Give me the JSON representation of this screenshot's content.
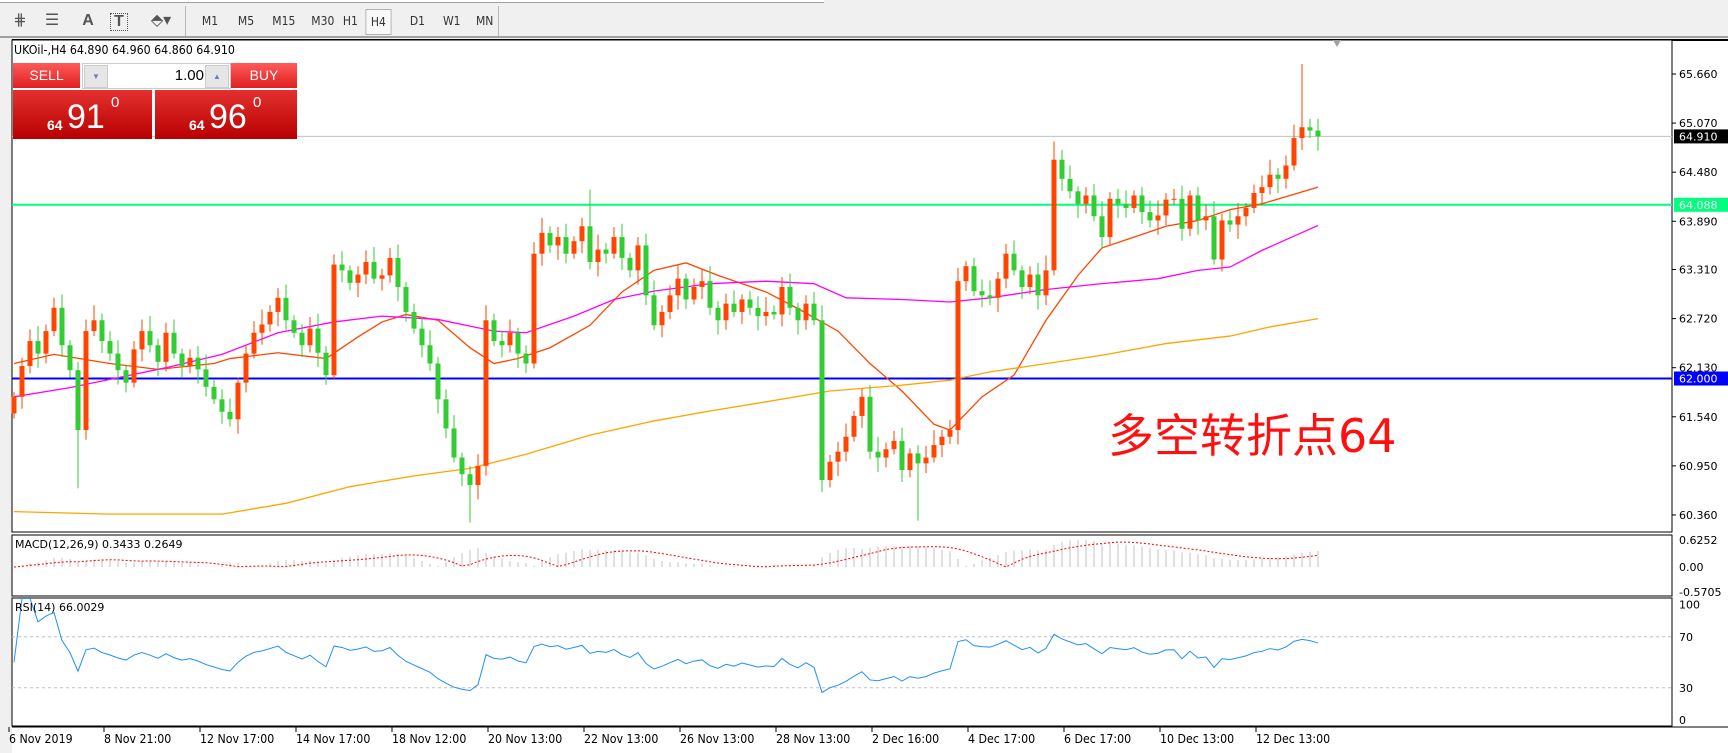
{
  "toolbar": {
    "icons": [
      "elliott-wave-icon",
      "fibonacci-fan-icon",
      "text-icon",
      "text-label-icon",
      "arrows-icon"
    ],
    "timeframes": [
      "M1",
      "M5",
      "M15",
      "M30",
      "H1",
      "H4",
      "D1",
      "W1",
      "MN"
    ],
    "selected_timeframe": "H4"
  },
  "chart": {
    "header": "UKOil-,H4  64.890 64.960 64.860 64.910",
    "trade_panel": {
      "sell_label": "SELL",
      "buy_label": "BUY",
      "lot": "1.00",
      "sell_price": {
        "prefix": "64",
        "big": "91",
        "sup": "0"
      },
      "buy_price": {
        "prefix": "64",
        "big": "96",
        "sup": "0"
      }
    },
    "annotation": "多空转折点64",
    "colors": {
      "up": "#ff4500",
      "down": "#32cd32",
      "doji": "#000000",
      "ma_fast": "#ff4500",
      "ma_mid": "#ff00ff",
      "ma_slow": "#ffa500",
      "support": "#0000ff",
      "pivot": "#00ff7f",
      "rsi": "#1e90ff",
      "signal": "#ff0000",
      "histogram": "#c0c0c0"
    }
  },
  "chart_data": {
    "type": "candlestick",
    "symbol": "UKOil-",
    "timeframe": "H4",
    "ylim": [
      60.1,
      65.9
    ],
    "y_ticks": [
      "65.660",
      "65.070",
      "64.480",
      "63.890",
      "63.310",
      "62.720",
      "62.130",
      "61.540",
      "60.950",
      "60.360"
    ],
    "x_ticks": [
      {
        "bar": 0,
        "label": "6 Nov 2019"
      },
      {
        "bar": 12,
        "label": "8 Nov 21:00"
      },
      {
        "bar": 24,
        "label": "12 Nov 17:00"
      },
      {
        "bar": 36,
        "label": "14 Nov 17:00"
      },
      {
        "bar": 48,
        "label": "18 Nov 12:00"
      },
      {
        "bar": 60,
        "label": "20 Nov 13:00"
      },
      {
        "bar": 72,
        "label": "22 Nov 13:00"
      },
      {
        "bar": 84,
        "label": "26 Nov 13:00"
      },
      {
        "bar": 96,
        "label": "28 Nov 13:00"
      },
      {
        "bar": 108,
        "label": "2 Dec 16:00"
      },
      {
        "bar": 120,
        "label": "4 Dec 17:00"
      },
      {
        "bar": 132,
        "label": "6 Dec 17:00"
      },
      {
        "bar": 144,
        "label": "10 Dec 13:00"
      },
      {
        "bar": 156,
        "label": "12 Dec 13:00"
      }
    ],
    "close": [
      61.78,
      62.15,
      62.45,
      62.3,
      62.57,
      62.85,
      62.4,
      62.1,
      61.38,
      62.57,
      62.7,
      62.45,
      62.3,
      62.1,
      61.95,
      62.35,
      62.57,
      62.4,
      62.2,
      62.55,
      62.3,
      62.15,
      62.25,
      62.11,
      61.9,
      61.75,
      61.6,
      61.51,
      61.95,
      62.3,
      62.55,
      62.65,
      62.8,
      62.97,
      62.7,
      62.55,
      62.4,
      62.6,
      62.31,
      62.04,
      63.37,
      63.3,
      63.15,
      63.25,
      63.4,
      63.2,
      63.24,
      63.45,
      63.1,
      62.8,
      62.6,
      62.4,
      62.18,
      61.75,
      61.4,
      61.05,
      60.85,
      60.72,
      60.95,
      62.7,
      62.45,
      62.4,
      62.55,
      62.3,
      62.18,
      63.5,
      63.75,
      63.6,
      63.7,
      63.5,
      63.65,
      63.83,
      63.4,
      63.55,
      63.5,
      63.7,
      63.45,
      63.3,
      63.6,
      63.0,
      62.64,
      62.8,
      63.0,
      63.2,
      62.95,
      63.1,
      63.17,
      62.85,
      62.7,
      62.9,
      62.8,
      62.95,
      62.85,
      62.75,
      62.8,
      62.77,
      63.1,
      62.85,
      62.7,
      62.9,
      62.7,
      60.78,
      61.0,
      61.12,
      61.3,
      61.55,
      61.78,
      61.12,
      61.05,
      61.15,
      61.25,
      60.9,
      61.1,
      60.98,
      61.05,
      61.2,
      61.3,
      61.38,
      63.17,
      63.35,
      63.05,
      63.0,
      62.97,
      63.2,
      63.5,
      63.3,
      63.1,
      63.25,
      63.0,
      63.3,
      64.63,
      64.4,
      64.25,
      64.1,
      64.2,
      63.95,
      63.7,
      64.16,
      64.1,
      64.05,
      64.2,
      64.0,
      63.9,
      63.96,
      64.15,
      64.16,
      63.8,
      64.2,
      63.9,
      63.95,
      63.43,
      63.9,
      63.85,
      63.95,
      64.05,
      64.23,
      64.3,
      64.45,
      64.4,
      64.56,
      64.89,
      65.02,
      64.98,
      64.91
    ],
    "notable_extremes": [
      {
        "bar": 8,
        "low": 60.68
      },
      {
        "bar": 57,
        "low": 60.27
      },
      {
        "bar": 72,
        "high": 64.27
      },
      {
        "bar": 113,
        "low": 60.29
      },
      {
        "bar": 130,
        "high": 64.85
      },
      {
        "bar": 161,
        "high": 65.78
      }
    ],
    "moving_averages": [
      {
        "role": "fast",
        "points": [
          [
            0,
            62.18
          ],
          [
            5,
            62.29
          ],
          [
            12,
            62.18
          ],
          [
            18,
            62.11
          ],
          [
            25,
            62.18
          ],
          [
            27,
            62.24
          ],
          [
            33,
            62.31
          ],
          [
            39,
            62.24
          ],
          [
            43,
            62.5
          ],
          [
            46,
            62.68
          ],
          [
            49,
            62.77
          ],
          [
            53,
            62.7
          ],
          [
            57,
            62.37
          ],
          [
            60,
            62.18
          ],
          [
            63,
            62.24
          ],
          [
            67,
            62.37
          ],
          [
            72,
            62.64
          ],
          [
            76,
            63.04
          ],
          [
            80,
            63.3
          ],
          [
            84,
            63.39
          ],
          [
            88,
            63.24
          ],
          [
            94,
            63.04
          ],
          [
            98,
            62.84
          ],
          [
            103,
            62.57
          ],
          [
            107,
            62.18
          ],
          [
            111,
            61.85
          ],
          [
            115,
            61.45
          ],
          [
            117,
            61.38
          ],
          [
            121,
            61.78
          ],
          [
            125,
            62.04
          ],
          [
            129,
            62.7
          ],
          [
            133,
            63.24
          ],
          [
            136,
            63.57
          ],
          [
            140,
            63.7
          ],
          [
            144,
            63.83
          ],
          [
            148,
            63.9
          ],
          [
            152,
            64.03
          ],
          [
            156,
            64.1
          ],
          [
            163,
            64.3
          ]
        ]
      },
      {
        "role": "mid",
        "points": [
          [
            0,
            61.78
          ],
          [
            7,
            61.89
          ],
          [
            12,
            61.99
          ],
          [
            19,
            62.13
          ],
          [
            26,
            62.29
          ],
          [
            33,
            62.55
          ],
          [
            40,
            62.68
          ],
          [
            46,
            62.75
          ],
          [
            53,
            62.71
          ],
          [
            60,
            62.57
          ],
          [
            64,
            62.55
          ],
          [
            70,
            62.75
          ],
          [
            75,
            62.95
          ],
          [
            80,
            63.05
          ],
          [
            87,
            63.14
          ],
          [
            94,
            63.17
          ],
          [
            100,
            63.14
          ],
          [
            104,
            62.97
          ],
          [
            111,
            62.95
          ],
          [
            117,
            62.92
          ],
          [
            122,
            62.97
          ],
          [
            129,
            63.07
          ],
          [
            136,
            63.14
          ],
          [
            143,
            63.2
          ],
          [
            148,
            63.3
          ],
          [
            152,
            63.34
          ],
          [
            156,
            63.54
          ],
          [
            163,
            63.84
          ]
        ]
      },
      {
        "role": "slow",
        "points": [
          [
            0,
            60.4
          ],
          [
            12,
            60.37
          ],
          [
            26,
            60.37
          ],
          [
            34,
            60.5
          ],
          [
            42,
            60.7
          ],
          [
            50,
            60.83
          ],
          [
            57,
            60.92
          ],
          [
            64,
            61.09
          ],
          [
            72,
            61.32
          ],
          [
            80,
            61.49
          ],
          [
            87,
            61.61
          ],
          [
            94,
            61.72
          ],
          [
            102,
            61.85
          ],
          [
            111,
            61.92
          ],
          [
            117,
            61.98
          ],
          [
            122,
            62.08
          ],
          [
            127,
            62.15
          ],
          [
            136,
            62.28
          ],
          [
            144,
            62.42
          ],
          [
            152,
            62.51
          ],
          [
            157,
            62.62
          ],
          [
            163,
            62.72
          ]
        ]
      }
    ],
    "levels": [
      {
        "price": 64.91,
        "label": "64.910",
        "role": "last"
      },
      {
        "price": 64.088,
        "label": "64.088",
        "role": "pivot"
      },
      {
        "price": 62.0,
        "label": "62.000",
        "role": "support"
      }
    ],
    "macd": {
      "label": "MACD(12,26,9) 0.3433 0.2649",
      "params": [
        12,
        26,
        9
      ],
      "ylim": [
        -0.5705,
        0.6252
      ],
      "ticks": [
        "0.6252",
        "0.00",
        "-0.5705"
      ]
    },
    "rsi": {
      "label": "RSI(14) 66.0029",
      "period": 14,
      "levels": [
        70,
        30
      ],
      "ticks": [
        "100",
        "70",
        "30",
        "0"
      ]
    }
  }
}
